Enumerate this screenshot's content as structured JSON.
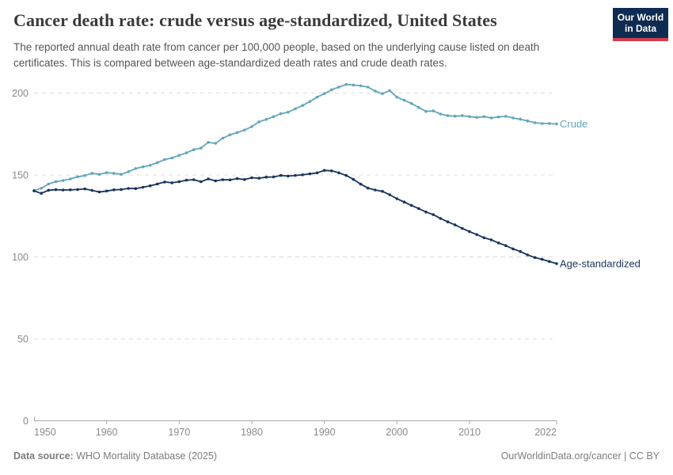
{
  "header": {
    "title": "Cancer death rate: crude versus age-standardized, United States",
    "subtitle": "The reported annual death rate from cancer per 100,000 people, based on the underlying cause listed on death certificates. This is compared between age-standardized death rates and crude death rates.",
    "logo": {
      "line1": "Our World",
      "line2": "in Data"
    }
  },
  "footer": {
    "source_label": "Data source:",
    "source_rest": " WHO Mortality Database (2025)",
    "link_text": "OurWorldinData.org/cancer | CC BY"
  },
  "colors": {
    "crude_series": "#62a7bc",
    "age_standardized_series": "#17355d",
    "grid_line": "#dcdcdc",
    "axis_line": "#a9a9a9",
    "tick_label": "#8a8a8a",
    "logo_bg": "#0e2c51",
    "logo_stripe": "#d13d4e"
  },
  "chart_data": {
    "type": "line",
    "title": "Cancer death rate: crude versus age-standardized, United States",
    "xlabel": "",
    "ylabel": "",
    "grid": "horizontal-dashed",
    "legend_position": "end-of-line-labels",
    "ylim": [
      0,
      210
    ],
    "yticks": [
      0,
      50,
      100,
      150,
      200
    ],
    "xticks": [
      1950,
      1960,
      1970,
      1980,
      1990,
      2000,
      2010,
      2022
    ],
    "x_range": [
      1950,
      2022
    ],
    "x": [
      1950,
      1951,
      1952,
      1953,
      1954,
      1955,
      1956,
      1957,
      1958,
      1959,
      1960,
      1961,
      1962,
      1963,
      1964,
      1965,
      1966,
      1967,
      1968,
      1969,
      1970,
      1971,
      1972,
      1973,
      1974,
      1975,
      1976,
      1977,
      1978,
      1979,
      1980,
      1981,
      1982,
      1983,
      1984,
      1985,
      1986,
      1987,
      1988,
      1989,
      1990,
      1991,
      1992,
      1993,
      1994,
      1995,
      1996,
      1997,
      1998,
      1999,
      2000,
      2001,
      2002,
      2003,
      2004,
      2005,
      2006,
      2007,
      2008,
      2009,
      2010,
      2011,
      2012,
      2013,
      2014,
      2015,
      2016,
      2017,
      2018,
      2019,
      2020,
      2021,
      2022
    ],
    "series": [
      {
        "name": "Crude",
        "color": "#62a7bc",
        "values": [
          140.5,
          141.9,
          144.5,
          145.9,
          146.6,
          147.6,
          148.9,
          149.6,
          151.0,
          150.4,
          151.4,
          151.0,
          150.4,
          152.0,
          153.9,
          155.0,
          155.9,
          157.6,
          159.4,
          160.4,
          162.0,
          163.5,
          165.4,
          166.4,
          169.9,
          169.3,
          172.4,
          174.5,
          175.9,
          177.4,
          179.5,
          182.4,
          183.9,
          185.6,
          187.4,
          188.3,
          190.4,
          192.4,
          194.8,
          197.5,
          199.6,
          202.0,
          203.6,
          205.2,
          204.9,
          204.4,
          203.6,
          201.2,
          199.6,
          201.5,
          197.5,
          195.6,
          193.6,
          191.2,
          188.8,
          189.1,
          187.2,
          186.2,
          185.9,
          186.2,
          185.6,
          185.1,
          185.6,
          184.8,
          185.4,
          185.8,
          184.8,
          184.0,
          183.0,
          181.9,
          181.4,
          181.4,
          181.1
        ]
      },
      {
        "name": "Age-standardized",
        "color": "#17355d",
        "values": [
          140.3,
          138.8,
          140.7,
          141.0,
          140.8,
          140.9,
          141.1,
          141.5,
          140.6,
          139.6,
          140.2,
          140.9,
          141.1,
          141.8,
          141.7,
          142.5,
          143.4,
          144.5,
          145.7,
          145.2,
          145.9,
          146.8,
          147.1,
          145.9,
          147.6,
          146.4,
          147.1,
          147.0,
          147.8,
          147.2,
          148.3,
          148.0,
          148.7,
          148.8,
          149.7,
          149.3,
          149.7,
          150.1,
          150.7,
          151.3,
          152.8,
          152.5,
          151.3,
          149.7,
          147.3,
          144.4,
          142.0,
          140.8,
          140.0,
          137.9,
          135.5,
          133.5,
          131.4,
          129.5,
          127.4,
          125.8,
          123.5,
          121.4,
          119.5,
          117.4,
          115.4,
          113.6,
          111.7,
          110.4,
          108.5,
          106.9,
          104.9,
          103.3,
          101.2,
          99.6,
          98.5,
          97.2,
          95.9
        ]
      }
    ]
  }
}
